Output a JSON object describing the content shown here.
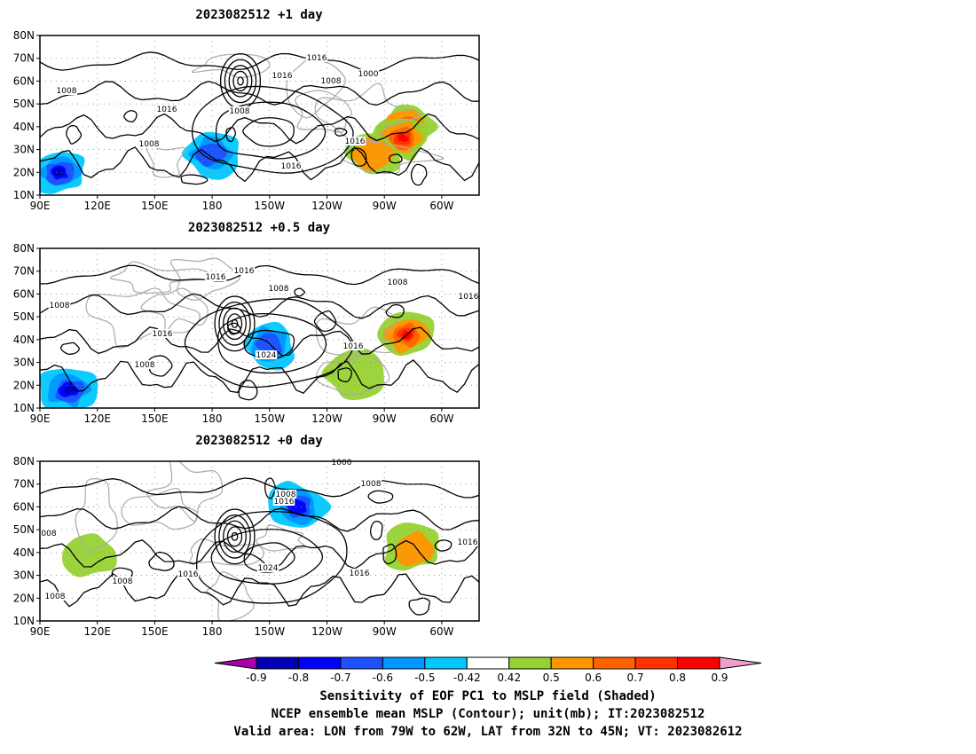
{
  "panels": [
    {
      "title": "2023082512  +1 day",
      "contour_labels": [
        "1008",
        "1016",
        "1016",
        "1008",
        "1000",
        "1008",
        "1016",
        "1016",
        "1008",
        "1016"
      ],
      "sensitivity_maxima": [
        {
          "lon": -78,
          "lat": 40,
          "level": "0.9"
        },
        {
          "lon": -80,
          "lat": 35,
          "level": "0.8"
        },
        {
          "lon": -95,
          "lat": 28,
          "level": "0.6"
        },
        {
          "lon": 100,
          "lat": 20,
          "level": "-0.9"
        },
        {
          "lon": 180,
          "lat": 28,
          "level": "-0.6"
        }
      ]
    },
    {
      "title": "2023082512  +0.5 day",
      "contour_labels": [
        "1008",
        "1016",
        "1016",
        "1008",
        "1008",
        "1016",
        "1016",
        "1008",
        "1024",
        "1016"
      ],
      "sensitivity_maxima": [
        {
          "lon": -78,
          "lat": 42,
          "level": "0.8"
        },
        {
          "lon": -105,
          "lat": 25,
          "level": "0.5"
        },
        {
          "lon": 105,
          "lat": 18,
          "level": "-0.9"
        },
        {
          "lon": -150,
          "lat": 38,
          "level": "-0.6"
        }
      ]
    },
    {
      "title": "2023082512  +0 day",
      "contour_labels": [
        "1000",
        "1008",
        "1008",
        "1016",
        "008",
        "1016",
        "1024",
        "1008",
        "1016",
        "1008",
        "1016"
      ],
      "sensitivity_maxima": [
        {
          "lon": -135,
          "lat": 60,
          "level": "-0.7"
        },
        {
          "lon": -75,
          "lat": 42,
          "level": "0.6"
        },
        {
          "lon": 115,
          "lat": 40,
          "level": "0.5"
        }
      ]
    }
  ],
  "map": {
    "lon_range": [
      90,
      320
    ],
    "lat_range": [
      10,
      80
    ],
    "lon_ticks": [
      "90E",
      "120E",
      "150E",
      "180",
      "150W",
      "120W",
      "90W",
      "60W"
    ],
    "lat_ticks": [
      "10N",
      "20N",
      "30N",
      "40N",
      "50N",
      "60N",
      "70N",
      "80N"
    ]
  },
  "colorbar": {
    "ticks": [
      "-0.9",
      "-0.8",
      "-0.7",
      "-0.6",
      "-0.5",
      "-0.42",
      "0.42",
      "0.5",
      "0.6",
      "0.7",
      "0.8",
      "0.9"
    ],
    "colors": [
      "#a800a8",
      "#0000b4",
      "#0000ff",
      "#1e50ff",
      "#0096ff",
      "#00c8ff",
      "#ffffff",
      "#96d232",
      "#ff9600",
      "#ff6400",
      "#ff3200",
      "#ff0000",
      "#f0a0c8"
    ]
  },
  "caption": {
    "line1": "Sensitivity of EOF PC1 to MSLP field (Shaded)",
    "line2": "NCEP ensemble mean MSLP (Contour); unit(mb); IT:2023082512",
    "line3": "Valid area: LON from 79W to 62W, LAT from 32N to 45N; VT: 2023082612"
  }
}
